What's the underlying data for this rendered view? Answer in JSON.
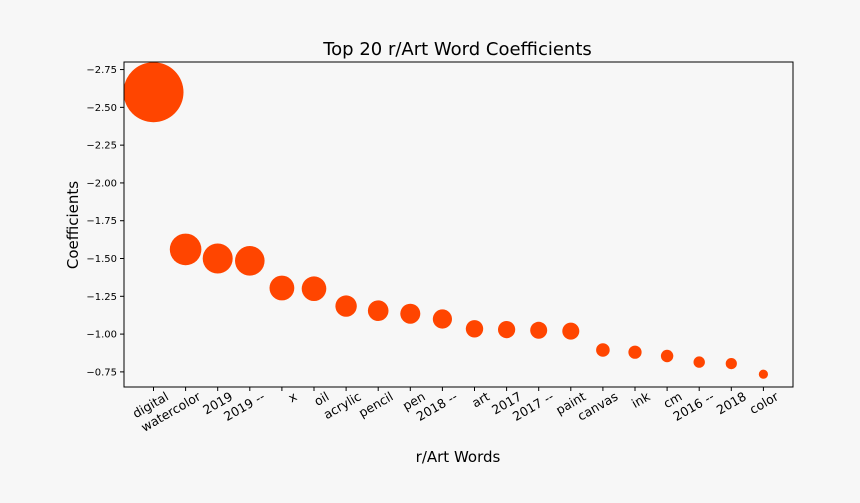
{
  "chart_data": {
    "type": "scatter",
    "title": "Top 20 r/Art Word Coefficients",
    "xlabel": "r/Art Words",
    "ylabel": "Coefficients",
    "categories": [
      "digital",
      "watercolor",
      "2019",
      "2019 --",
      "x",
      "oil",
      "acrylic",
      "pencil",
      "pen",
      "2018 --",
      "art",
      "2017",
      "2017 --",
      "paint",
      "canvas",
      "ink",
      "cm",
      "2016 --",
      "2018",
      "color"
    ],
    "values": [
      -2.6,
      -1.56,
      -1.5,
      -1.485,
      -1.305,
      -1.3,
      -1.185,
      -1.155,
      -1.135,
      -1.1,
      -1.035,
      -1.03,
      -1.025,
      -1.02,
      -0.895,
      -0.88,
      -0.855,
      -0.815,
      -0.805,
      -0.735
    ],
    "y_ticks": [
      -2.75,
      -2.5,
      -2.25,
      -2.0,
      -1.75,
      -1.5,
      -1.25,
      -1.0,
      -0.75
    ],
    "y_tick_labels": [
      "−2.75",
      "−2.50",
      "−2.25",
      "−2.00",
      "−1.75",
      "−1.50",
      "−1.25",
      "−1.00",
      "−0.75"
    ],
    "ylim": [
      -2.8,
      -0.65
    ],
    "y_inverted": true,
    "marker_size_by": "abs(value)",
    "marker_color": "#ff4500",
    "grid": false,
    "legend": "none"
  }
}
